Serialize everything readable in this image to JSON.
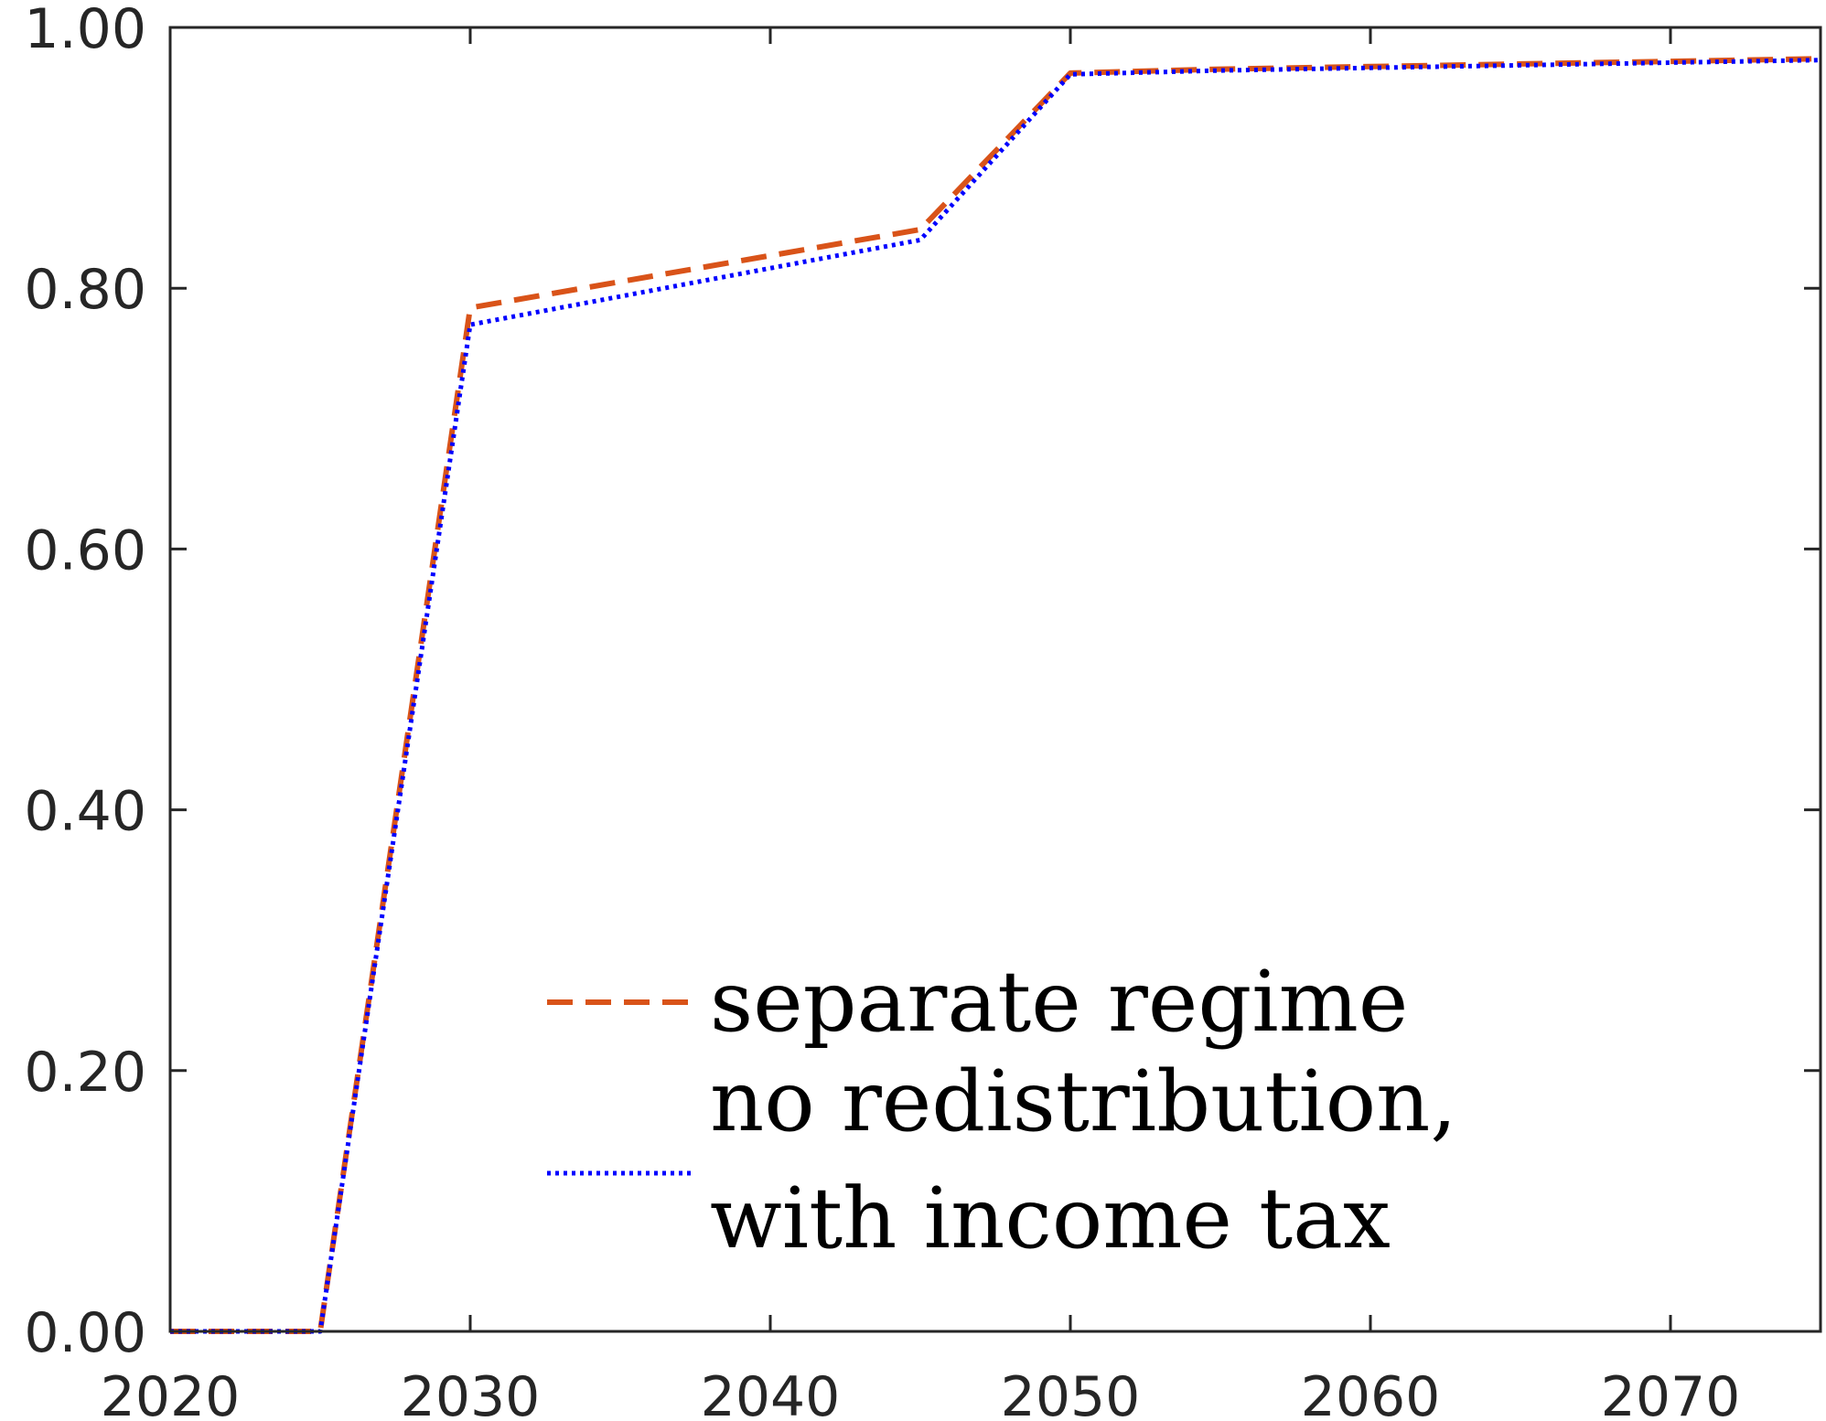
{
  "chart_data": {
    "type": "line",
    "title": "",
    "xlabel": "",
    "ylabel": "",
    "xlim": [
      2020,
      2075
    ],
    "ylim": [
      0,
      1
    ],
    "xticks": [
      2020,
      2030,
      2040,
      2050,
      2060,
      2070
    ],
    "xtick_labels": [
      "2020",
      "2030",
      "2040",
      "2050",
      "2060",
      "2070"
    ],
    "yticks": [
      0,
      0.2,
      0.4,
      0.6,
      0.8,
      1.0
    ],
    "ytick_labels": [
      "0.00",
      "0.20",
      "0.40",
      "0.60",
      "0.80",
      "1.00"
    ],
    "grid": false,
    "legend_position": "bottom-center",
    "series": [
      {
        "name": "separate regime",
        "color": "#D95319",
        "style": "dashed",
        "x": [
          2020,
          2025,
          2030,
          2045,
          2050,
          2055,
          2060,
          2065,
          2070,
          2075
        ],
        "y": [
          0.0,
          0.0,
          0.785,
          0.845,
          0.965,
          0.968,
          0.97,
          0.972,
          0.974,
          0.976
        ]
      },
      {
        "name": "no redistribution, with income tax",
        "legend_lines": [
          "no redistribution,",
          "with income tax"
        ],
        "color": "#0000FF",
        "style": "dotted",
        "x": [
          2020,
          2025,
          2030,
          2045,
          2050,
          2055,
          2060,
          2065,
          2070,
          2075
        ],
        "y": [
          0.0,
          0.0,
          0.772,
          0.837,
          0.964,
          0.967,
          0.969,
          0.971,
          0.973,
          0.975
        ]
      }
    ]
  }
}
